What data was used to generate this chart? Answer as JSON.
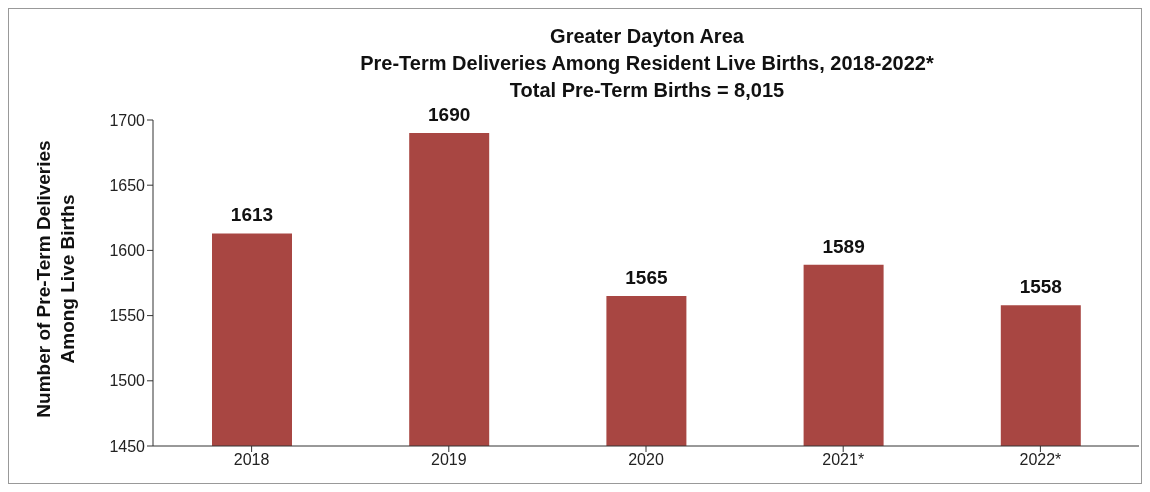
{
  "chart_data": {
    "type": "bar",
    "title": "Greater Dayton Area\nPre-Term Deliveries Among Resident Live Births, 2018-2022*",
    "subtitle": "Total Pre-Term Births = 8,015",
    "ylabel": "Number of Pre-Term Deliveries\nAmong Live Births",
    "categories": [
      "2018",
      "2019",
      "2020",
      "2021*",
      "2022*"
    ],
    "values": [
      1613,
      1690,
      1565,
      1589,
      1558
    ],
    "color": "#a84642",
    "ylim": [
      1450,
      1700
    ],
    "yticks": [
      1450,
      1500,
      1550,
      1600,
      1650,
      1700
    ],
    "grid": false,
    "data_labels": true
  }
}
